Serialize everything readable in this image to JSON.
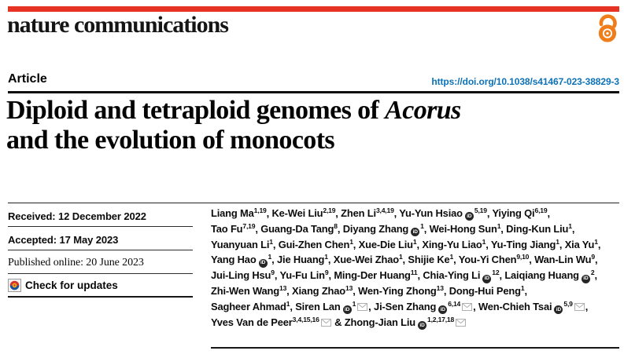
{
  "masthead": {
    "journal": "nature communications"
  },
  "article": {
    "type_label": "Article",
    "doi": "https://doi.org/10.1038/s41467-023-38829-3",
    "title": {
      "prefix": "Diploid and tetraploid genomes of ",
      "italic": "Acorus",
      "line2": "and the evolution of monocots"
    }
  },
  "metadata": {
    "received": "Received: 12 December 2022",
    "accepted": "Accepted: 17 May 2023",
    "published": "Published online: 20 June 2023",
    "check_updates_label": "Check for updates"
  },
  "authors": {
    "lines": [
      [
        {
          "n": "Liang Ma",
          "s": "1,19",
          "sep": ", "
        },
        {
          "n": "Ke-Wei Liu",
          "s": "2,19",
          "sep": ", "
        },
        {
          "n": "Zhen Li",
          "s": "3,4,19",
          "sep": ", "
        },
        {
          "n": "Yu-Yun Hsiao",
          "o": 1,
          "s": "5,19",
          "sep": ", "
        },
        {
          "n": "Yiying Qi",
          "s": "6,19",
          "sep": ","
        }
      ],
      [
        {
          "n": "Tao Fu",
          "s": "7,19",
          "sep": ", "
        },
        {
          "n": "Guang-Da Tang",
          "s": "8",
          "sep": ", "
        },
        {
          "n": "Diyang Zhang",
          "o": 1,
          "s": "1",
          "sep": ", "
        },
        {
          "n": "Wei-Hong Sun",
          "s": "1",
          "sep": ", "
        },
        {
          "n": "Ding-Kun Liu",
          "s": "1",
          "sep": ","
        }
      ],
      [
        {
          "n": "Yuanyuan Li",
          "s": "1",
          "sep": ", "
        },
        {
          "n": "Gui-Zhen Chen",
          "s": "1",
          "sep": ", "
        },
        {
          "n": "Xue-Die Liu",
          "s": "1",
          "sep": ", "
        },
        {
          "n": "Xing-Yu Liao",
          "s": "1",
          "sep": ", "
        },
        {
          "n": "Yu-Ting Jiang",
          "s": "1",
          "sep": ", "
        },
        {
          "n": "Xia Yu",
          "s": "1",
          "sep": ","
        }
      ],
      [
        {
          "n": "Yang Hao",
          "o": 1,
          "s": "1",
          "sep": ", "
        },
        {
          "n": "Jie Huang",
          "s": "1",
          "sep": ", "
        },
        {
          "n": "Xue-Wei Zhao",
          "s": "1",
          "sep": ", "
        },
        {
          "n": "Shijie Ke",
          "s": "1",
          "sep": ", "
        },
        {
          "n": "You-Yi Chen",
          "s": "9,10",
          "sep": ", "
        },
        {
          "n": "Wan-Lin Wu",
          "s": "9",
          "sep": ","
        }
      ],
      [
        {
          "n": "Jui-Ling Hsu",
          "s": "9",
          "sep": ", "
        },
        {
          "n": "Yu-Fu Lin",
          "s": "9",
          "sep": ", "
        },
        {
          "n": "Ming-Der Huang",
          "s": "11",
          "sep": ", "
        },
        {
          "n": "Chia-Ying Li",
          "o": 1,
          "s": "12",
          "sep": ", "
        },
        {
          "n": "Laiqiang Huang",
          "o": 1,
          "s": "2",
          "sep": ","
        }
      ],
      [
        {
          "n": "Zhi-Wen Wang",
          "s": "13",
          "sep": ", "
        },
        {
          "n": "Xiang Zhao",
          "s": "13",
          "sep": ", "
        },
        {
          "n": "Wen-Ying Zhong",
          "s": "13",
          "sep": ", "
        },
        {
          "n": "Dong-Hui Peng",
          "s": "1",
          "sep": ","
        }
      ],
      [
        {
          "n": "Sagheer Ahmad",
          "s": "1",
          "sep": ", "
        },
        {
          "n": "Siren Lan",
          "o": 1,
          "s": "1",
          "m": 1,
          "sep": ", "
        },
        {
          "n": "Ji-Sen Zhang",
          "o": 1,
          "s": "6,14",
          "m": 1,
          "sep": ", "
        },
        {
          "n": "Wen-Chieh Tsai",
          "o": 1,
          "s": "5,9",
          "m": 1,
          "sep": ","
        }
      ],
      [
        {
          "n": "Yves Van de Peer",
          "s": "3,4,15,16",
          "m": 1,
          "sep": " & "
        },
        {
          "n": "Zhong-Jian Liu",
          "o": 1,
          "s": "1,2,17,18",
          "m": 1,
          "sep": ""
        }
      ]
    ]
  },
  "icons": {
    "open_access": "open-lock-icon",
    "orcid": "orcid-id-icon",
    "email": "envelope-icon",
    "check_updates": "crossmark-icon",
    "orcid_glyph": "iD"
  },
  "colors": {
    "brand_red": "#e63323",
    "open_access_orange": "#ef7d1a",
    "link_blue": "#0c72b7",
    "crossmark_red": "#d6332c",
    "crossmark_blue": "#1b4e9b",
    "crossmark_yellow": "#f3b01c"
  }
}
